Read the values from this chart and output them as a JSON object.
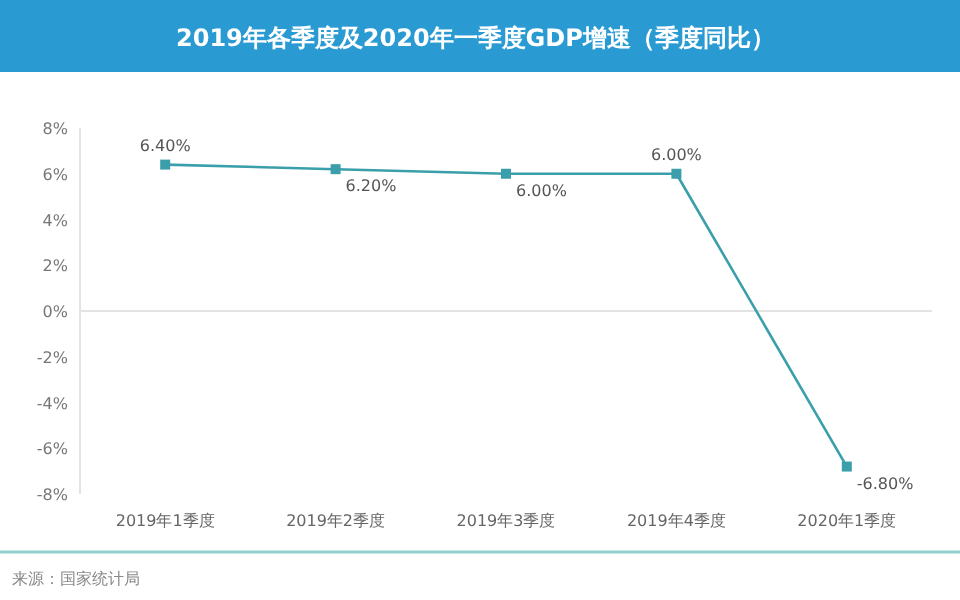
{
  "chart_data": {
    "type": "line",
    "title": "2019年各季度及2020年一季度GDP增速（季度同比）",
    "categories": [
      "2019年1季度",
      "2019年2季度",
      "2019年3季度",
      "2019年4季度",
      "2020年1季度"
    ],
    "values": [
      6.4,
      6.2,
      6.0,
      6.0,
      -6.8
    ],
    "value_labels": [
      "6.40%",
      "6.20%",
      "6.00%",
      "6.00%",
      "-6.80%"
    ],
    "color": "#3a9fab",
    "marker": "square",
    "line_style": "solid",
    "ylim": [
      -8,
      8
    ],
    "yticks": [
      {
        "value": -8,
        "label": "-8%"
      },
      {
        "value": -6,
        "label": "-6%"
      },
      {
        "value": -4,
        "label": "-4%"
      },
      {
        "value": -2,
        "label": "-2%"
      },
      {
        "value": 0,
        "label": "0%"
      },
      {
        "value": 2,
        "label": "2%"
      },
      {
        "value": 4,
        "label": "4%"
      },
      {
        "value": 6,
        "label": "6%"
      },
      {
        "value": 8,
        "label": "8%"
      }
    ],
    "annotations": [
      "来源：国家统计局"
    ]
  }
}
